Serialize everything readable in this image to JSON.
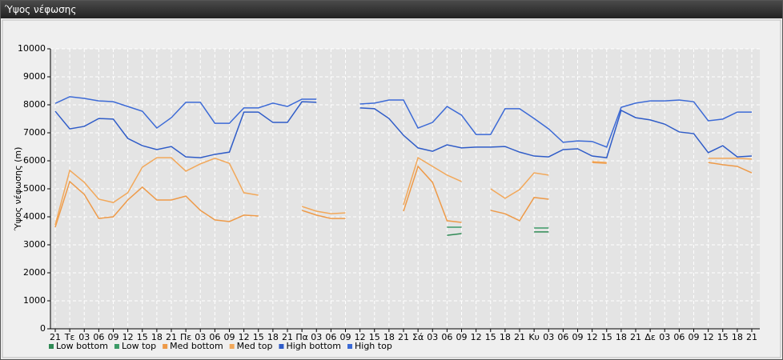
{
  "chart_data": {
    "type": "line",
    "title": "Ύψος νέφωσης",
    "y_label": "Ύψος νέφωσης (m)",
    "categories": [
      "21",
      "Τε",
      "03",
      "06",
      "09",
      "12",
      "15",
      "18",
      "21",
      "Πε",
      "03",
      "06",
      "09",
      "12",
      "15",
      "18",
      "21",
      "Πα",
      "03",
      "06",
      "09",
      "12",
      "15",
      "18",
      "21",
      "Σά",
      "03",
      "06",
      "09",
      "12",
      "15",
      "18",
      "21",
      "Κυ",
      "03",
      "06",
      "09",
      "12",
      "15",
      "18",
      "21",
      "Δε",
      "03",
      "06",
      "09",
      "12",
      "15",
      "18",
      "21"
    ],
    "ylim": [
      0,
      10000
    ],
    "yticks": [
      0,
      1000,
      2000,
      3000,
      4000,
      5000,
      6000,
      7000,
      8000,
      9000,
      10000
    ],
    "grid": true,
    "series": [
      {
        "name": "Low bottom",
        "color": "#2f8a55",
        "values": [
          null,
          null,
          null,
          null,
          null,
          null,
          null,
          null,
          null,
          null,
          null,
          null,
          null,
          null,
          null,
          null,
          null,
          null,
          null,
          null,
          null,
          null,
          null,
          null,
          null,
          null,
          null,
          3340,
          3400,
          null,
          null,
          null,
          null,
          3460,
          3460,
          null,
          null,
          null,
          null,
          null,
          null,
          null,
          null,
          null,
          null,
          null,
          null,
          null,
          null
        ]
      },
      {
        "name": "Low top",
        "color": "#3c9a66",
        "values": [
          null,
          null,
          null,
          null,
          null,
          null,
          null,
          null,
          null,
          null,
          null,
          null,
          null,
          null,
          null,
          null,
          null,
          null,
          null,
          null,
          null,
          null,
          null,
          null,
          null,
          null,
          null,
          3630,
          3630,
          null,
          null,
          null,
          null,
          3600,
          3600,
          null,
          null,
          null,
          null,
          null,
          null,
          null,
          null,
          null,
          null,
          null,
          null,
          null,
          null
        ]
      },
      {
        "name": "Med bottom",
        "color": "#ee9a48",
        "values": [
          3630,
          5260,
          4800,
          3940,
          4000,
          4600,
          5060,
          4600,
          4600,
          4740,
          4230,
          3890,
          3830,
          4060,
          4030,
          null,
          null,
          4230,
          4060,
          3940,
          3940,
          null,
          null,
          null,
          4200,
          5800,
          5230,
          3860,
          3800,
          null,
          4230,
          4110,
          3860,
          4690,
          4630,
          null,
          null,
          5940,
          5910,
          null,
          null,
          null,
          null,
          null,
          null,
          5940,
          5860,
          5800,
          5570
        ]
      },
      {
        "name": "Med top",
        "color": "#f2a85a",
        "values": [
          3710,
          5660,
          5230,
          4630,
          4510,
          4860,
          5770,
          6110,
          6110,
          5630,
          5890,
          6090,
          5910,
          4860,
          4770,
          null,
          null,
          4370,
          4200,
          4110,
          4140,
          null,
          null,
          null,
          4430,
          6110,
          5800,
          5490,
          5260,
          null,
          5000,
          4660,
          4970,
          5570,
          5490,
          null,
          null,
          5970,
          5940,
          null,
          null,
          null,
          null,
          null,
          null,
          6090,
          6090,
          6090,
          6060
        ]
      },
      {
        "name": "High bottom",
        "color": "#2f5cc8",
        "values": [
          7770,
          7140,
          7230,
          7510,
          7490,
          6800,
          6540,
          6400,
          6510,
          6140,
          6110,
          6230,
          6310,
          7740,
          7740,
          7370,
          7370,
          8110,
          8090,
          null,
          null,
          7890,
          7860,
          7510,
          6910,
          6460,
          6340,
          6570,
          6460,
          6490,
          6490,
          6510,
          6310,
          6170,
          6140,
          6400,
          6430,
          6170,
          6110,
          7800,
          7540,
          7460,
          7310,
          7030,
          6970,
          6290,
          6540,
          6140,
          6170
        ]
      },
      {
        "name": "High top",
        "color": "#3c6ad6",
        "values": [
          8050,
          8290,
          8230,
          8140,
          8110,
          7940,
          7770,
          7170,
          7540,
          8090,
          8090,
          7340,
          7340,
          7890,
          7890,
          8060,
          7940,
          8200,
          8200,
          null,
          null,
          8030,
          8060,
          8170,
          8170,
          7170,
          7370,
          7940,
          7630,
          6940,
          6940,
          7860,
          7860,
          7510,
          7140,
          6660,
          6710,
          6690,
          6490,
          7910,
          8060,
          8140,
          8140,
          8170,
          8110,
          7430,
          7490,
          7740,
          7740
        ]
      }
    ]
  }
}
